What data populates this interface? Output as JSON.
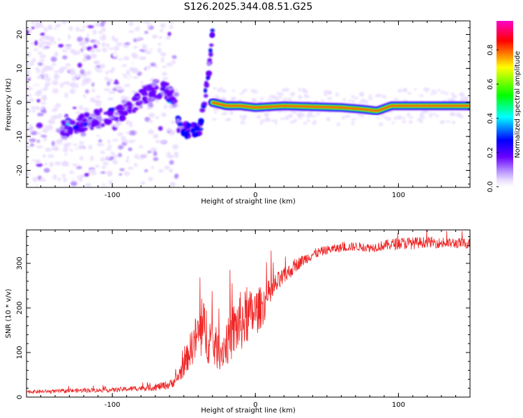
{
  "title": "S126.2025.344.08.51.G25",
  "chart_data": [
    {
      "type": "heatmap",
      "xlabel": "Height of straight line (km)",
      "ylabel": "Frequency (Hz)",
      "xlim": [
        -160,
        150
      ],
      "ylim": [
        -25,
        24
      ],
      "xticks": [
        -100,
        0,
        100
      ],
      "yticks": [
        -20,
        -10,
        0,
        10,
        20
      ],
      "xtick_labels": [
        "-100",
        "0",
        "100"
      ],
      "ytick_labels": [
        "-20",
        "-10",
        "0",
        "10",
        "20"
      ],
      "colorbar": {
        "label": "Normalized spectral amplitude",
        "range": [
          0,
          0.97
        ],
        "ticks": [
          0.0,
          0.2,
          0.4,
          0.6,
          0.8
        ],
        "tick_labels": [
          "0.0",
          "0.2",
          "0.4",
          "0.6",
          "0.8"
        ],
        "colormap": [
          "#ffffff",
          "#e9dcff",
          "#b088ff",
          "#6a00ff",
          "#0000ff",
          "#00ffff",
          "#00ff00",
          "#ffff00",
          "#ff0000",
          "#ff00c8"
        ]
      },
      "features": {
        "noise_region_x": [
          -160,
          -65
        ],
        "rising_band": [
          [
            -135,
            -8
          ],
          [
            -110,
            -5
          ],
          [
            -90,
            -2
          ],
          [
            -70,
            4
          ],
          [
            -55,
            2
          ]
        ],
        "spike_branch": [
          [
            -55,
            -6
          ],
          [
            -45,
            -9
          ],
          [
            -38,
            -7
          ],
          [
            -33,
            8
          ],
          [
            -30,
            20
          ]
        ],
        "tone_track": [
          [
            -30,
            0
          ],
          [
            -20,
            -1
          ],
          [
            -10,
            -1
          ],
          [
            0,
            -1.5
          ],
          [
            20,
            -1
          ],
          [
            60,
            -1.5
          ],
          [
            75,
            -2
          ],
          [
            85,
            -2.5
          ],
          [
            95,
            -1
          ],
          [
            110,
            -1
          ],
          [
            150,
            -1
          ]
        ]
      }
    },
    {
      "type": "line",
      "xlabel": "Height of straight line (km)",
      "ylabel": "SNR (10 * v/v)",
      "xlim": [
        -160,
        150
      ],
      "ylim": [
        0,
        375
      ],
      "xticks": [
        -100,
        0,
        100
      ],
      "yticks": [
        0,
        100,
        200,
        300
      ],
      "xtick_labels": [
        "-100",
        "0",
        "100"
      ],
      "ytick_labels": [
        "0",
        "100",
        "200",
        "300"
      ],
      "color": "#ee2222",
      "series": [
        {
          "name": "SNR",
          "x": [
            -160,
            -140,
            -120,
            -100,
            -80,
            -70,
            -60,
            -55,
            -50,
            -45,
            -40,
            -35,
            -30,
            -25,
            -20,
            -15,
            -10,
            -5,
            0,
            5,
            10,
            15,
            20,
            30,
            40,
            50,
            60,
            70,
            80,
            90,
            100,
            110,
            120,
            130,
            140,
            150
          ],
          "y": [
            12,
            13,
            15,
            16,
            20,
            22,
            28,
            40,
            70,
            110,
            140,
            150,
            120,
            100,
            120,
            150,
            170,
            180,
            190,
            205,
            230,
            255,
            270,
            300,
            320,
            330,
            335,
            338,
            335,
            340,
            345,
            345,
            348,
            345,
            345,
            345
          ],
          "noise": [
            4,
            4,
            5,
            5,
            6,
            8,
            10,
            14,
            25,
            40,
            60,
            70,
            55,
            40,
            50,
            65,
            70,
            60,
            55,
            45,
            35,
            25,
            20,
            14,
            12,
            10,
            10,
            10,
            10,
            12,
            14,
            14,
            12,
            12,
            12,
            12
          ]
        }
      ]
    }
  ]
}
